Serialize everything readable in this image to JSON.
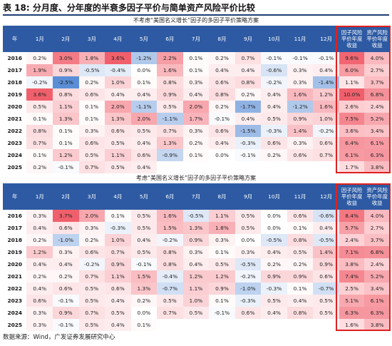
{
  "title": "表 18: 分月度、分年度的半衰多因子平价与简单资产风险平价比较",
  "header": {
    "year_col": "年",
    "months": [
      "1月",
      "2月",
      "3月",
      "4月",
      "5月",
      "6月",
      "7月",
      "8月",
      "9月",
      "10月",
      "11月",
      "12月"
    ],
    "factor_col": "因子风险平价年度收益",
    "asset_col": "资产风险平价年度收益"
  },
  "colors": {
    "header_bg": "#2d5aa3",
    "neg_strong": "#5b8ed6",
    "pos_strong": "#f0606c",
    "box": "#e02020"
  },
  "tables": [
    {
      "caption": "不考虑“美国名义增长”因子的多因子平价策略方案",
      "rows": [
        {
          "year": "2016",
          "months": [
            "0.2%",
            "3.0%",
            "1.8%",
            "3.6%",
            "-1.2%",
            "2.2%",
            "0.1%",
            "0.2%",
            "0.7%",
            "-0.1%",
            "-0.1%",
            "-0.1%"
          ],
          "factor": "9.6%",
          "asset": "4.0%"
        },
        {
          "year": "2017",
          "months": [
            "1.9%",
            "0.9%",
            "-0.5%",
            "-0.4%",
            "0.0%",
            "1.6%",
            "0.1%",
            "0.4%",
            "0.4%",
            "-0.6%",
            "0.3%",
            "0.4%"
          ],
          "factor": "6.0%",
          "asset": "2.7%"
        },
        {
          "year": "2018",
          "months": [
            "-0.2%",
            "-2.5%",
            "0.2%",
            "1.0%",
            "0.1%",
            "0.8%",
            "0.3%",
            "0.6%",
            "0.8%",
            "-0.2%",
            "0.3%",
            "-1.4%"
          ],
          "factor": "1.1%",
          "asset": "3.7%"
        },
        {
          "year": "2019",
          "months": [
            "3.6%",
            "0.8%",
            "0.6%",
            "0.4%",
            "0.4%",
            "0.9%",
            "0.4%",
            "0.8%",
            "0.2%",
            "0.4%",
            "1.6%",
            "1.2%"
          ],
          "factor": "10.0%",
          "asset": "6.8%"
        },
        {
          "year": "2020",
          "months": [
            "0.5%",
            "1.1%",
            "0.1%",
            "2.0%",
            "-1.1%",
            "0.5%",
            "2.0%",
            "0.2%",
            "-1.7%",
            "0.4%",
            "-1.2%",
            "1.6%"
          ],
          "factor": "2.6%",
          "asset": "2.4%"
        },
        {
          "year": "2021",
          "months": [
            "0.1%",
            "1.3%",
            "0.1%",
            "1.3%",
            "2.0%",
            "-1.1%",
            "1.7%",
            "-0.1%",
            "0.4%",
            "0.5%",
            "0.9%",
            "1.0%"
          ],
          "factor": "7.5%",
          "asset": "5.2%"
        },
        {
          "year": "2022",
          "months": [
            "0.8%",
            "0.1%",
            "0.3%",
            "0.6%",
            "0.5%",
            "0.7%",
            "0.3%",
            "0.6%",
            "-1.5%",
            "-0.3%",
            "1.4%",
            "-0.2%"
          ],
          "factor": "3.6%",
          "asset": "3.4%"
        },
        {
          "year": "2023",
          "months": [
            "0.7%",
            "0.1%",
            "0.6%",
            "0.5%",
            "0.4%",
            "1.3%",
            "0.2%",
            "0.4%",
            "-0.3%",
            "0.6%",
            "0.3%",
            "0.6%"
          ],
          "factor": "6.4%",
          "asset": "6.1%"
        },
        {
          "year": "2024",
          "months": [
            "0.1%",
            "1.2%",
            "0.5%",
            "1.1%",
            "0.6%",
            "-0.9%",
            "0.1%",
            "0.0%",
            "-0.1%",
            "0.2%",
            "0.6%",
            "0.7%"
          ],
          "factor": "6.1%",
          "asset": "6.3%"
        },
        {
          "year": "2025",
          "months": [
            "0.2%",
            "-0.1%",
            "0.7%",
            "0.5%",
            "0.4%",
            "",
            "",
            "",
            "",
            "",
            "",
            ""
          ],
          "factor": "1.7%",
          "asset": "3.8%"
        }
      ]
    },
    {
      "caption": "考虑“美国名义增长”因子的多因子平价策略方案",
      "rows": [
        {
          "year": "2016",
          "months": [
            "0.3%",
            "3.7%",
            "2.0%",
            "0.1%",
            "0.5%",
            "1.6%",
            "-0.5%",
            "1.1%",
            "0.5%",
            "0.0%",
            "0.6%",
            "-0.6%"
          ],
          "factor": "8.4%",
          "asset": "4.0%"
        },
        {
          "year": "2017",
          "months": [
            "0.4%",
            "0.6%",
            "0.3%",
            "-0.3%",
            "0.5%",
            "1.5%",
            "1.3%",
            "1.8%",
            "0.5%",
            "0.0%",
            "0.1%",
            "0.4%"
          ],
          "factor": "5.7%",
          "asset": "2.7%"
        },
        {
          "year": "2018",
          "months": [
            "0.2%",
            "-1.0%",
            "0.2%",
            "1.0%",
            "0.4%",
            "-0.2%",
            "0.9%",
            "0.3%",
            "0.0%",
            "-0.5%",
            "0.8%",
            "-0.5%"
          ],
          "factor": "2.4%",
          "asset": "3.7%"
        },
        {
          "year": "2019",
          "months": [
            "1.2%",
            "0.3%",
            "0.6%",
            "0.7%",
            "0.5%",
            "0.8%",
            "0.3%",
            "0.1%",
            "0.3%",
            "0.4%",
            "0.5%",
            "1.4%"
          ],
          "factor": "7.1%",
          "asset": "6.8%"
        },
        {
          "year": "2020",
          "months": [
            "0.4%",
            "0.4%",
            "-0.2%",
            "0.9%",
            "-0.1%",
            "0.8%",
            "0.4%",
            "0.5%",
            "-0.5%",
            "0.2%",
            "0.2%",
            "0.9%"
          ],
          "factor": "3.8%",
          "asset": "2.4%"
        },
        {
          "year": "2021",
          "months": [
            "0.2%",
            "0.2%",
            "0.7%",
            "1.1%",
            "1.5%",
            "-0.4%",
            "1.2%",
            "1.2%",
            "-0.2%",
            "0.9%",
            "0.9%",
            "0.6%"
          ],
          "factor": "7.4%",
          "asset": "5.2%"
        },
        {
          "year": "2022",
          "months": [
            "0.4%",
            "0.6%",
            "0.5%",
            "0.6%",
            "1.3%",
            "-0.7%",
            "1.1%",
            "0.9%",
            "-1.0%",
            "-0.3%",
            "0.1%",
            "-0.7%"
          ],
          "factor": "2.5%",
          "asset": "3.4%"
        },
        {
          "year": "2023",
          "months": [
            "0.6%",
            "-0.1%",
            "0.5%",
            "0.4%",
            "0.2%",
            "0.5%",
            "1.0%",
            "0.1%",
            "-0.3%",
            "0.5%",
            "0.4%",
            "0.5%"
          ],
          "factor": "5.1%",
          "asset": "6.1%"
        },
        {
          "year": "2024",
          "months": [
            "0.3%",
            "0.9%",
            "0.7%",
            "0.5%",
            "0.0%",
            "0.7%",
            "0.5%",
            "-0.1%",
            "0.6%",
            "0.4%",
            "0.8%",
            "0.5%"
          ],
          "factor": "6.3%",
          "asset": "6.3%"
        },
        {
          "year": "2025",
          "months": [
            "0.3%",
            "-0.1%",
            "0.5%",
            "0.4%",
            "0.1%",
            "",
            "",
            "",
            "",
            "",
            "",
            ""
          ],
          "factor": "1.6%",
          "asset": "3.8%"
        }
      ]
    }
  ],
  "footer": "数据来源：Wind，广发证券发展研究中心"
}
